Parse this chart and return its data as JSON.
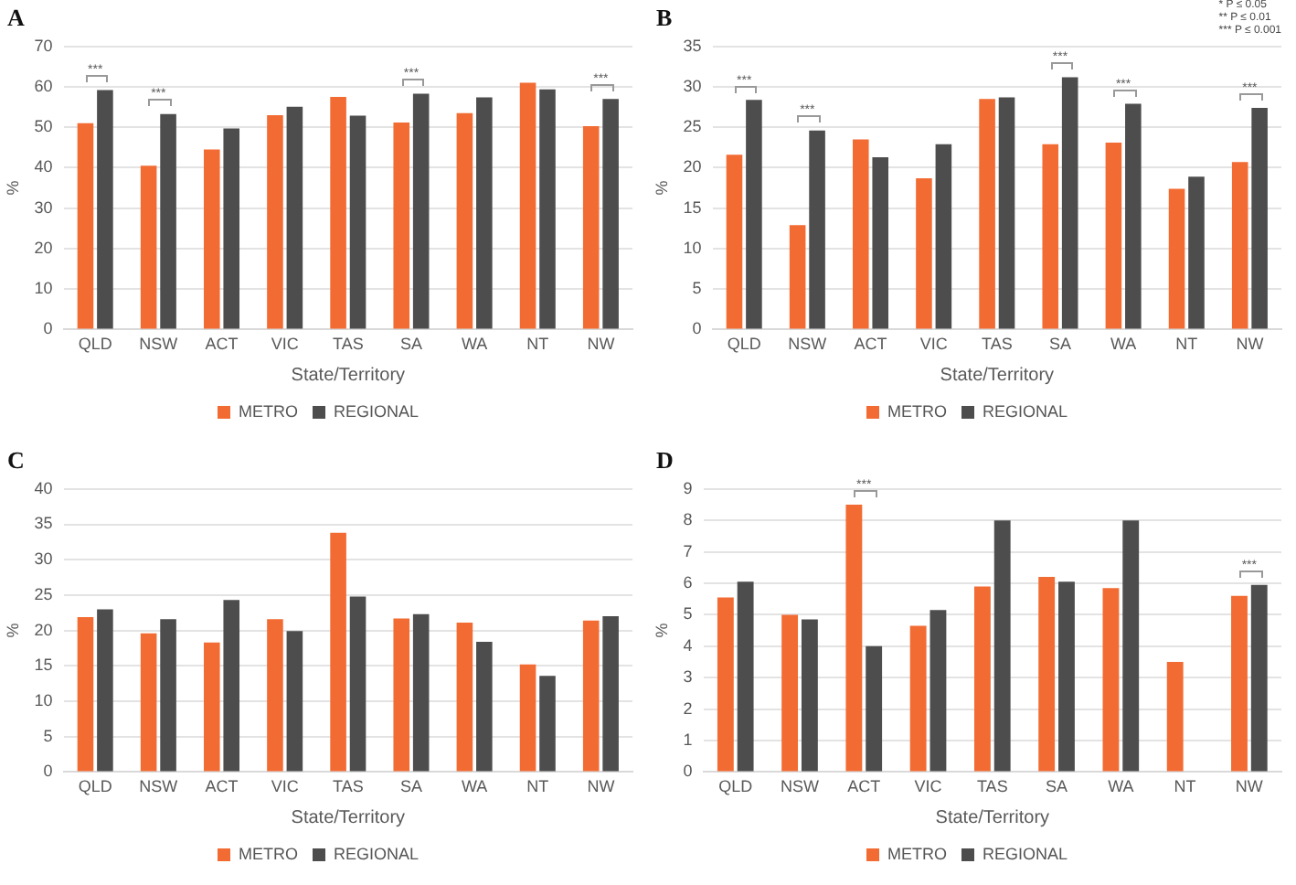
{
  "chart_data": [
    {
      "type": "bar",
      "title": "A",
      "xlabel": "State/Territory",
      "ylabel": "%",
      "categories": [
        "QLD",
        "NSW",
        "ACT",
        "VIC",
        "TAS",
        "SA",
        "WA",
        "NT",
        "NW"
      ],
      "series": [
        {
          "name": "METRO",
          "color": "#f26b32",
          "values": [
            51,
            40.5,
            44.5,
            53,
            57.5,
            51.2,
            53.5,
            61,
            50.3
          ]
        },
        {
          "name": "REGIONAL",
          "color": "#4d4d4d",
          "values": [
            59.2,
            53.3,
            49.7,
            55.1,
            52.9,
            58.3,
            57.4,
            59.4,
            57
          ]
        }
      ],
      "ylim": [
        0,
        70
      ],
      "yticks": [
        0,
        10,
        20,
        30,
        40,
        50,
        60,
        70
      ],
      "grid": "y",
      "legend": "bottom",
      "annotations": [
        {
          "text": "***",
          "x": "QLD",
          "y": 59.2
        },
        {
          "text": "***",
          "x": "NSW",
          "y": 53.3
        },
        {
          "text": "***",
          "x": "SA",
          "y": 58.3
        },
        {
          "text": "***",
          "x": "NW",
          "y": 57
        }
      ]
    },
    {
      "type": "bar",
      "title": "B",
      "xlabel": "State/Territory",
      "ylabel": "%",
      "categories": [
        "QLD",
        "NSW",
        "ACT",
        "VIC",
        "TAS",
        "SA",
        "WA",
        "NT",
        "NW"
      ],
      "series": [
        {
          "name": "METRO",
          "color": "#f26b32",
          "values": [
            21.6,
            12.9,
            23.5,
            18.7,
            28.5,
            22.9,
            23.1,
            17.4,
            20.7
          ]
        },
        {
          "name": "REGIONAL",
          "color": "#4d4d4d",
          "values": [
            28.4,
            24.6,
            21.3,
            22.9,
            28.7,
            31.2,
            27.9,
            18.9,
            27.4
          ]
        }
      ],
      "ylim": [
        0,
        35
      ],
      "yticks": [
        0,
        5,
        10,
        15,
        20,
        25,
        30,
        35
      ],
      "grid": "y",
      "legend": "bottom",
      "annotations": [
        "* P ≤ 0.05",
        "** P ≤ 0.01",
        "*** P ≤ 0.001",
        {
          "text": "***",
          "x": "QLD",
          "y": 28.4
        },
        {
          "text": "***",
          "x": "NSW",
          "y": 24.6
        },
        {
          "text": "***",
          "x": "SA",
          "y": 31.2
        },
        {
          "text": "***",
          "x": "WA",
          "y": 27.9
        },
        {
          "text": "***",
          "x": "NW",
          "y": 27.4
        }
      ]
    },
    {
      "type": "bar",
      "title": "C",
      "xlabel": "State/Territory",
      "ylabel": "%",
      "categories": [
        "QLD",
        "NSW",
        "ACT",
        "VIC",
        "TAS",
        "SA",
        "WA",
        "NT",
        "NW"
      ],
      "series": [
        {
          "name": "METRO",
          "color": "#f26b32",
          "values": [
            21.9,
            19.6,
            18.3,
            21.6,
            33.8,
            21.7,
            21.1,
            15.2,
            21.4
          ]
        },
        {
          "name": "REGIONAL",
          "color": "#4d4d4d",
          "values": [
            23,
            21.6,
            24.3,
            19.9,
            24.8,
            22.3,
            18.4,
            13.6,
            22
          ]
        }
      ],
      "ylim": [
        0,
        40
      ],
      "yticks": [
        0,
        5,
        10,
        15,
        20,
        25,
        30,
        35,
        40
      ],
      "grid": "y",
      "legend": "bottom"
    },
    {
      "type": "bar",
      "title": "D",
      "xlabel": "State/Territory",
      "ylabel": "%",
      "categories": [
        "QLD",
        "NSW",
        "ACT",
        "VIC",
        "TAS",
        "SA",
        "WA",
        "NT",
        "NW"
      ],
      "series": [
        {
          "name": "METRO",
          "color": "#f26b32",
          "values": [
            5.55,
            5.0,
            8.5,
            4.65,
            5.9,
            6.2,
            5.85,
            3.5,
            5.6
          ]
        },
        {
          "name": "REGIONAL",
          "color": "#4d4d4d",
          "values": [
            6.05,
            4.85,
            4.0,
            5.15,
            8.0,
            6.05,
            8.0,
            null,
            5.95
          ]
        }
      ],
      "ylim": [
        0,
        9
      ],
      "yticks": [
        0,
        1,
        2,
        3,
        4,
        5,
        6,
        7,
        8,
        9
      ],
      "grid": "y",
      "legend": "bottom",
      "annotations": [
        {
          "text": "***",
          "x": "ACT",
          "y": 8.5
        },
        {
          "text": "***",
          "x": "NW",
          "y": 5.95
        }
      ]
    }
  ]
}
